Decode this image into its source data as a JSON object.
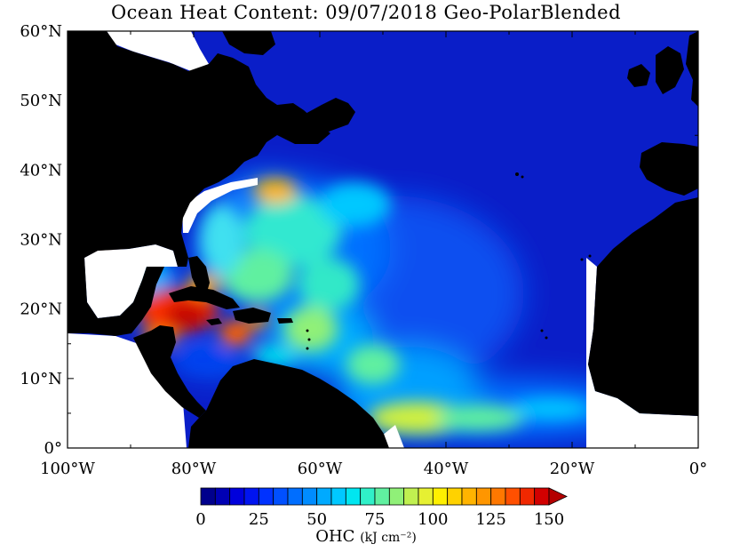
{
  "title": "Ocean Heat Content: 09/07/2018 Geo-PolarBlended",
  "map": {
    "lon_range": [
      -100,
      0
    ],
    "lat_range": [
      0,
      60
    ],
    "lat_ticks": [
      {
        "value": 0,
        "label": "0°"
      },
      {
        "value": 10,
        "label": "10°N"
      },
      {
        "value": 20,
        "label": "20°N"
      },
      {
        "value": 30,
        "label": "30°N"
      },
      {
        "value": 40,
        "label": "40°N"
      },
      {
        "value": 50,
        "label": "50°N"
      },
      {
        "value": 60,
        "label": "60°N"
      }
    ],
    "lon_ticks": [
      {
        "value": -100,
        "label": "100°W"
      },
      {
        "value": -80,
        "label": "80°W"
      },
      {
        "value": -60,
        "label": "60°W"
      },
      {
        "value": -40,
        "label": "40°W"
      },
      {
        "value": -20,
        "label": "20°W"
      },
      {
        "value": 0,
        "label": "0°"
      }
    ],
    "colors": {
      "land": "#000000",
      "nodata": "#ffffff",
      "ocean_base": "#0a1ec8"
    }
  },
  "colorbar": {
    "min": 0,
    "max": 150,
    "step": 6.25,
    "tick_labels": [
      "0",
      "25",
      "50",
      "75",
      "100",
      "125",
      "150"
    ],
    "extend": "max",
    "title": "OHC",
    "units": "(kJ cm⁻²)",
    "colors": [
      "#00008c",
      "#0000b4",
      "#0000dc",
      "#0014f0",
      "#0032ff",
      "#0050ff",
      "#006eff",
      "#008cff",
      "#00aaff",
      "#00c8ff",
      "#00e6f0",
      "#30f0c8",
      "#60f0a0",
      "#90f078",
      "#c0f050",
      "#e6f032",
      "#fff000",
      "#ffd200",
      "#ffb400",
      "#ff9600",
      "#ff7800",
      "#ff5000",
      "#f02800",
      "#d20000",
      "#b40000"
    ]
  }
}
